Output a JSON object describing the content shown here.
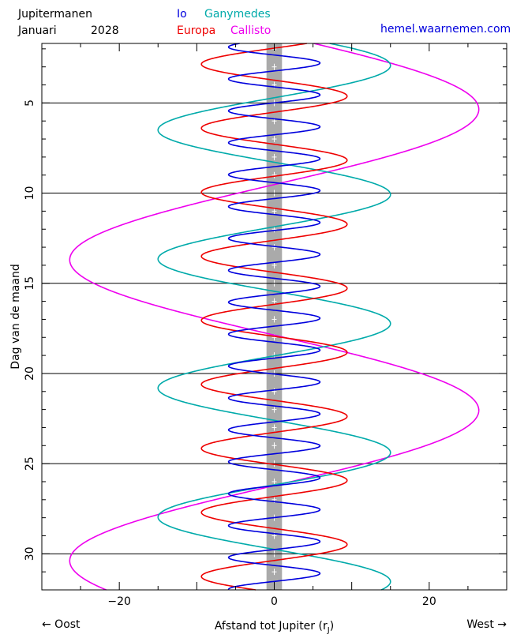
{
  "header": {
    "title": "Jupitermanen",
    "month": "Januari",
    "year": "2028",
    "website": "hemel.waarnemen.com"
  },
  "legend": [
    {
      "name": "Io",
      "color": "#0000dd"
    },
    {
      "name": "Ganymedes",
      "color": "#00aaaa"
    },
    {
      "name": "Europa",
      "color": "#ee0000"
    },
    {
      "name": "Callisto",
      "color": "#ee00ee"
    }
  ],
  "footer": {
    "left": "← Oost",
    "right": "West →"
  },
  "colors": {
    "io": "#0000dd",
    "europa": "#ee0000",
    "ganymedes": "#00aaaa",
    "callisto": "#ee00ee",
    "jupiter_band": "#aaaaaa"
  },
  "chart_data": {
    "type": "line",
    "title": "Jupitermanen",
    "xlabel": "Afstand tot Jupiter (r",
    "xlabel_sub": "J",
    "xlabel_close": ")",
    "ylabel": "Dag van de maand",
    "xlim": [
      -30,
      30
    ],
    "ylim": [
      1.7,
      32
    ],
    "y_inverted": true,
    "xticks": [
      -20,
      0,
      20
    ],
    "yticks": [
      5,
      10,
      15,
      20,
      25,
      30
    ],
    "grid": "horizontal lines at labeled days",
    "jupiter_band_halfwidth": 1,
    "series": [
      {
        "name": "Io",
        "amplitude": 5.9,
        "period_days": 1.769,
        "peak_east_day": 1.9
      },
      {
        "name": "Europa",
        "amplitude": 9.4,
        "period_days": 3.551,
        "peak_east_day": 2.85
      },
      {
        "name": "Ganymedes",
        "amplitude": 15.0,
        "period_days": 7.155,
        "peak_east_day": 6.5
      },
      {
        "name": "Callisto",
        "amplitude": 26.4,
        "period_days": 16.689,
        "peak_east_day": 13.7
      }
    ]
  }
}
